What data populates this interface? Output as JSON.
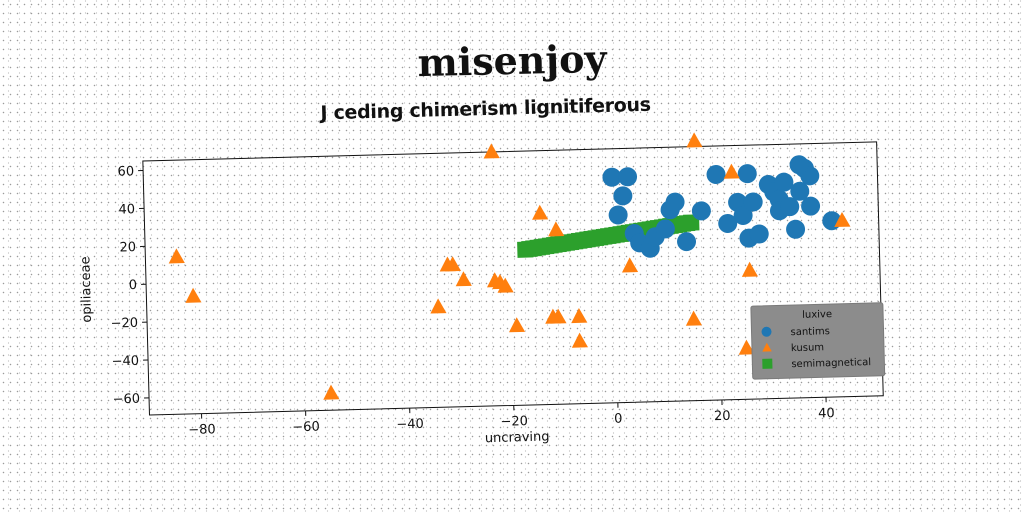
{
  "title": "misenjoy",
  "chart_data": {
    "type": "scatter",
    "title": "J ceding chimerism lignitiferous",
    "xlabel": "uncraving",
    "ylabel": "opiliaceae",
    "xlim": [
      -90,
      51
    ],
    "ylim": [
      -69,
      65
    ],
    "xticks": [
      -80,
      -60,
      -40,
      -20,
      0,
      20,
      40
    ],
    "yticks": [
      -60,
      -40,
      -20,
      0,
      20,
      40,
      60
    ],
    "grid": false,
    "legend": {
      "title": "luxive",
      "placement": "lower-right"
    },
    "series": [
      {
        "name": "santims",
        "marker": "circle",
        "color": "#1f77b4",
        "points": [
          [
            0,
            50
          ],
          [
            3,
            50
          ],
          [
            2,
            40
          ],
          [
            1,
            30
          ],
          [
            4,
            20
          ],
          [
            5,
            15
          ],
          [
            7,
            12
          ],
          [
            8,
            18
          ],
          [
            10,
            22
          ],
          [
            11,
            32
          ],
          [
            12,
            36
          ],
          [
            14,
            15
          ],
          [
            17,
            31
          ],
          [
            20,
            50
          ],
          [
            22,
            24
          ],
          [
            24,
            35
          ],
          [
            25,
            28
          ],
          [
            26,
            16
          ],
          [
            26,
            50
          ],
          [
            27,
            35
          ],
          [
            28,
            18
          ],
          [
            30,
            44
          ],
          [
            31,
            40
          ],
          [
            32,
            36
          ],
          [
            32,
            30
          ],
          [
            33,
            45
          ],
          [
            34,
            32
          ],
          [
            35,
            20
          ],
          [
            36,
            40
          ],
          [
            37,
            52
          ],
          [
            38,
            48
          ],
          [
            38,
            32
          ],
          [
            42,
            24
          ],
          [
            36,
            54
          ]
        ]
      },
      {
        "name": "kusum",
        "marker": "triangle",
        "color": "#ff7f0e",
        "points": [
          [
            -84,
            14
          ],
          [
            -81,
            -7
          ],
          [
            -55,
            -60
          ],
          [
            -34,
            -16
          ],
          [
            -32,
            6
          ],
          [
            -31,
            6
          ],
          [
            -29,
            -2
          ],
          [
            -23,
            65
          ],
          [
            -23,
            -3
          ],
          [
            -22,
            -4
          ],
          [
            -21,
            -6
          ],
          [
            -19,
            -27
          ],
          [
            -14,
            32
          ],
          [
            -12,
            -23
          ],
          [
            -11,
            23
          ],
          [
            -11,
            -23
          ],
          [
            -7,
            -23
          ],
          [
            -7,
            -36
          ],
          [
            3,
            3
          ],
          [
            15,
            -26
          ],
          [
            16,
            68
          ],
          [
            23,
            51
          ],
          [
            25,
            -42
          ],
          [
            26,
            -1
          ],
          [
            44,
            24
          ]
        ]
      },
      {
        "name": "semimagnetical",
        "marker": "square",
        "color": "#2ca02c",
        "line": {
          "from": [
            -17,
            13
          ],
          "to": [
            15,
            25
          ]
        }
      }
    ]
  }
}
